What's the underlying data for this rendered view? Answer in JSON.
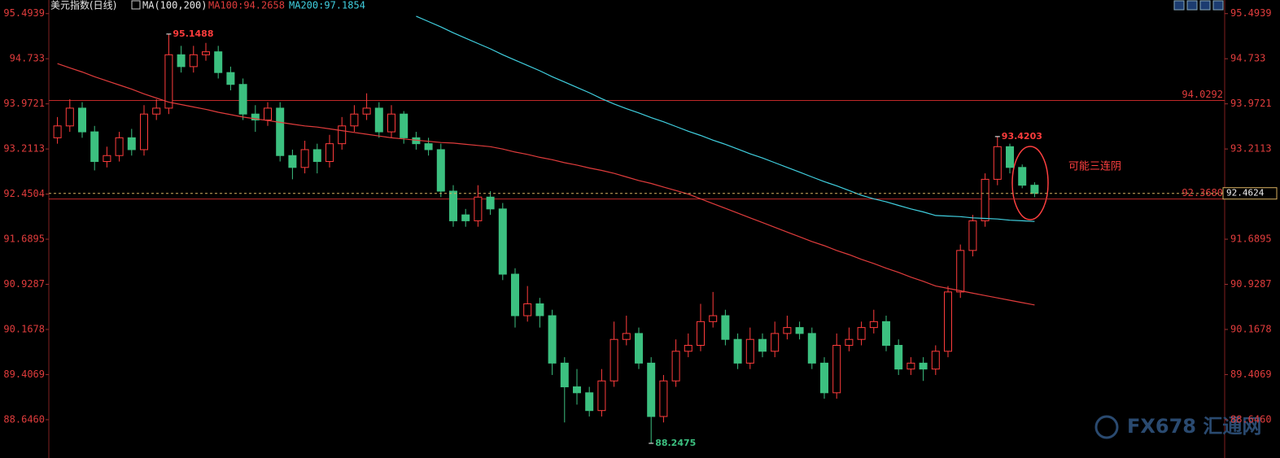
{
  "chart_data": {
    "type": "candlestick",
    "title": "美元指数(日线)",
    "subtitle": "MA(100,200)",
    "up_color": "#ff3c3c",
    "down_color": "#3cc080",
    "ylim": [
      88.0,
      95.6
    ],
    "yticks": [
      95.4939,
      94.733,
      93.9721,
      93.2113,
      92.4504,
      91.6895,
      90.9287,
      90.1678,
      89.4069,
      {
        "value": 88.646,
        "label": "88.6460"
      }
    ],
    "open": [
      93.4,
      93.6,
      93.9,
      93.5,
      93.0,
      93.1,
      93.4,
      93.2,
      93.8,
      93.9,
      94.8,
      94.6,
      94.8,
      94.85,
      94.5,
      94.3,
      93.8,
      93.7,
      93.9,
      93.1,
      92.9,
      93.2,
      93.0,
      93.3,
      93.6,
      93.8,
      93.9,
      93.5,
      93.8,
      93.4,
      93.3,
      93.2,
      92.5,
      92.1,
      92.0,
      92.4,
      92.2,
      91.1,
      90.4,
      90.6,
      90.4,
      89.6,
      89.2,
      89.1,
      88.8,
      89.3,
      90.0,
      90.1,
      89.6,
      88.7,
      89.3,
      89.8,
      89.9,
      90.3,
      90.4,
      90.0,
      89.6,
      90.0,
      89.8,
      90.1,
      90.2,
      90.1,
      89.6,
      89.1,
      89.9,
      90.0,
      90.2,
      90.3,
      89.9,
      89.5,
      89.6,
      89.5,
      89.8,
      90.8,
      91.5,
      92.0,
      92.7,
      93.25,
      92.9,
      92.6
    ],
    "high": [
      93.75,
      94.05,
      94.0,
      93.6,
      93.25,
      93.5,
      93.55,
      93.95,
      94.05,
      95.1488,
      94.95,
      94.95,
      95.0,
      94.95,
      94.6,
      94.4,
      93.95,
      94.0,
      94.0,
      93.2,
      93.35,
      93.3,
      93.45,
      93.75,
      93.95,
      94.15,
      94.0,
      93.95,
      93.85,
      93.5,
      93.4,
      93.3,
      92.6,
      92.2,
      92.6,
      92.5,
      92.3,
      91.2,
      90.9,
      90.7,
      90.5,
      89.7,
      89.5,
      89.2,
      89.5,
      90.3,
      90.4,
      90.2,
      89.7,
      89.4,
      90.0,
      90.1,
      90.6,
      90.8,
      90.5,
      90.1,
      90.2,
      90.1,
      90.3,
      90.4,
      90.3,
      90.2,
      89.7,
      90.1,
      90.2,
      90.3,
      90.5,
      90.4,
      90.0,
      89.7,
      89.7,
      89.9,
      90.9,
      91.6,
      92.1,
      92.8,
      93.4203,
      93.3,
      92.95,
      92.65
    ],
    "low": [
      93.3,
      93.5,
      93.4,
      92.85,
      92.9,
      93.0,
      93.1,
      93.1,
      93.7,
      93.8,
      94.5,
      94.5,
      94.7,
      94.4,
      94.2,
      93.7,
      93.5,
      93.6,
      93.0,
      92.7,
      92.8,
      92.8,
      92.9,
      93.2,
      93.5,
      93.7,
      93.4,
      93.4,
      93.3,
      93.2,
      93.1,
      92.4,
      91.9,
      91.9,
      91.9,
      92.1,
      91.0,
      90.2,
      90.3,
      90.2,
      89.4,
      88.6,
      88.9,
      88.7,
      88.7,
      89.2,
      89.9,
      89.5,
      88.2475,
      88.6,
      89.2,
      89.7,
      89.8,
      90.2,
      89.9,
      89.5,
      89.5,
      89.7,
      89.7,
      90.0,
      90.0,
      89.5,
      89.0,
      89.0,
      89.8,
      89.9,
      90.1,
      89.8,
      89.4,
      89.4,
      89.3,
      89.4,
      89.7,
      90.7,
      91.4,
      91.9,
      92.6,
      92.8,
      92.55,
      92.4
    ],
    "close": [
      93.6,
      93.9,
      93.5,
      93.0,
      93.1,
      93.4,
      93.2,
      93.8,
      93.9,
      94.8,
      94.6,
      94.8,
      94.85,
      94.5,
      94.3,
      93.8,
      93.7,
      93.9,
      93.1,
      92.9,
      93.2,
      93.0,
      93.3,
      93.6,
      93.8,
      93.9,
      93.5,
      93.8,
      93.4,
      93.3,
      93.2,
      92.5,
      92.0,
      92.0,
      92.4,
      92.2,
      91.1,
      90.4,
      90.6,
      90.4,
      89.6,
      89.2,
      89.1,
      88.8,
      89.3,
      90.0,
      90.1,
      89.6,
      88.7,
      89.3,
      89.8,
      89.9,
      90.3,
      90.4,
      90.0,
      89.6,
      90.0,
      89.8,
      90.1,
      90.2,
      90.1,
      89.6,
      89.1,
      89.9,
      90.0,
      90.2,
      90.3,
      89.9,
      89.5,
      89.6,
      89.5,
      89.8,
      90.8,
      91.5,
      92.0,
      92.7,
      93.25,
      92.9,
      92.6,
      92.4624
    ],
    "series": [
      {
        "name": "MA100:94.2658",
        "color": "#e03c3c",
        "values": [
          94.65,
          94.58,
          94.51,
          94.43,
          94.36,
          94.29,
          94.22,
          94.14,
          94.07,
          94.0,
          93.96,
          93.92,
          93.88,
          93.83,
          93.79,
          93.75,
          93.72,
          93.69,
          93.66,
          93.63,
          93.6,
          93.58,
          93.55,
          93.52,
          93.49,
          93.46,
          93.43,
          93.4,
          93.38,
          93.36,
          93.34,
          93.32,
          93.31,
          93.29,
          93.27,
          93.25,
          93.21,
          93.16,
          93.12,
          93.07,
          93.03,
          92.98,
          92.94,
          92.89,
          92.85,
          92.8,
          92.74,
          92.68,
          92.63,
          92.57,
          92.51,
          92.45,
          92.37,
          92.29,
          92.21,
          92.13,
          92.05,
          91.97,
          91.89,
          91.81,
          91.73,
          91.65,
          91.58,
          91.5,
          91.43,
          91.35,
          91.28,
          91.2,
          91.13,
          91.05,
          90.98,
          90.9,
          90.86,
          90.82,
          90.78,
          90.74,
          90.7,
          90.66,
          90.62,
          90.58
        ]
      },
      {
        "name": "MA200:97.1854",
        "color": "#40d0e0",
        "values": [
          null,
          null,
          null,
          null,
          null,
          null,
          null,
          null,
          null,
          null,
          null,
          null,
          null,
          null,
          null,
          null,
          null,
          null,
          null,
          null,
          null,
          null,
          null,
          null,
          null,
          null,
          null,
          null,
          null,
          95.45,
          95.36,
          95.27,
          95.17,
          95.08,
          94.99,
          94.9,
          94.8,
          94.71,
          94.62,
          94.53,
          94.43,
          94.34,
          94.25,
          94.16,
          94.06,
          93.97,
          93.89,
          93.82,
          93.74,
          93.67,
          93.59,
          93.51,
          93.44,
          93.36,
          93.29,
          93.21,
          93.13,
          93.06,
          92.98,
          92.9,
          92.82,
          92.74,
          92.66,
          92.59,
          92.51,
          92.43,
          92.37,
          92.32,
          92.26,
          92.2,
          92.15,
          92.09,
          92.08,
          92.07,
          92.05,
          92.04,
          92.03,
          92.01,
          92.0,
          91.99
        ]
      }
    ],
    "hlines": [
      {
        "value": 94.0292,
        "color": "#c02828"
      },
      {
        "value": 92.368,
        "label": "92.3680",
        "color": "#c02828"
      }
    ],
    "annotation": "可能三连阴",
    "watermark": "FX678 汇通网"
  }
}
